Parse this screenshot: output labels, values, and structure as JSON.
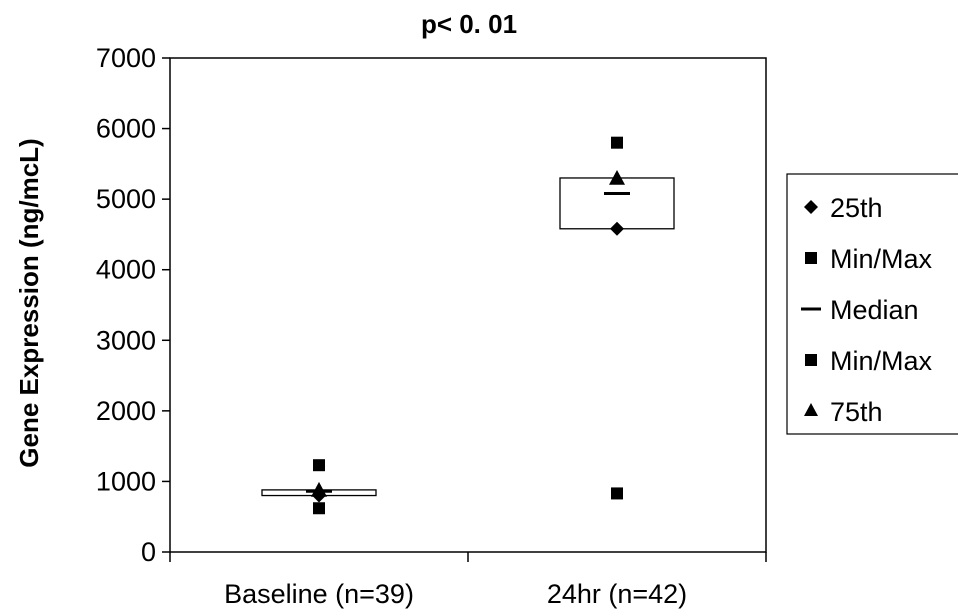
{
  "chart_data": {
    "type": "box",
    "title": "p< 0. 01",
    "ylabel": "Gene Expression (ng/mcL)",
    "xlabel": "",
    "ylim": [
      0,
      7000
    ],
    "yticks": [
      0,
      1000,
      2000,
      3000,
      4000,
      5000,
      6000,
      7000
    ],
    "categories": [
      "Baseline (n=39)",
      "24hr (n=42)"
    ],
    "boxes": [
      {
        "category": "Baseline (n=39)",
        "p25": 800,
        "median": 860,
        "p75": 880,
        "min": 620,
        "max": 1230
      },
      {
        "category": "24hr (n=42)",
        "p25": 4580,
        "median": 5080,
        "p75": 5300,
        "min": 830,
        "max": 5800
      }
    ],
    "legend": {
      "position": "right",
      "entries": [
        {
          "label": "25th",
          "marker": "diamond"
        },
        {
          "label": "Min/Max",
          "marker": "square"
        },
        {
          "label": "Median",
          "marker": "dash"
        },
        {
          "label": "Min/Max",
          "marker": "square"
        },
        {
          "label": "75th",
          "marker": "triangle"
        }
      ]
    },
    "grid": false
  }
}
